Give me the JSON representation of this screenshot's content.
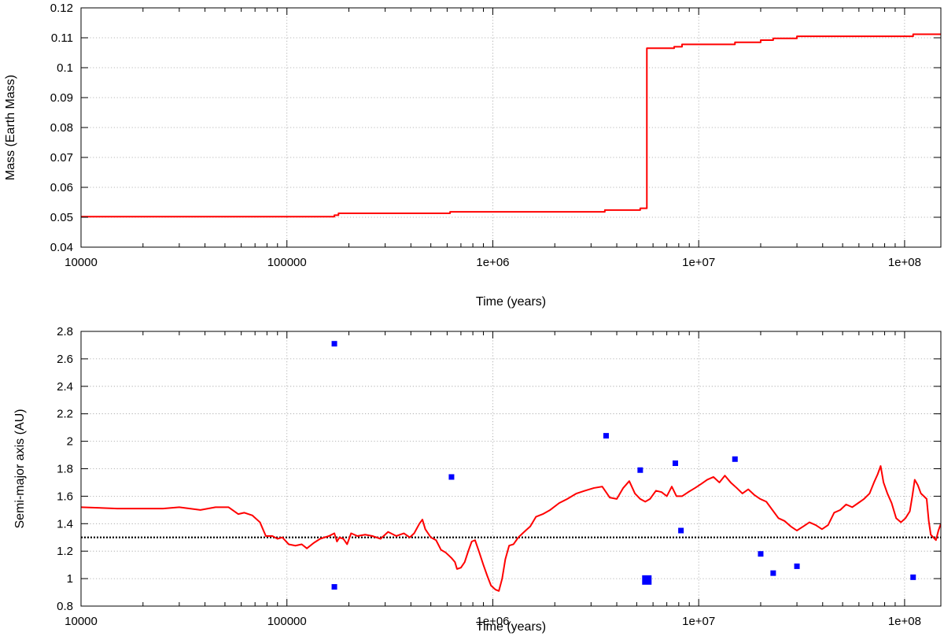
{
  "chart_data": [
    {
      "type": "line",
      "title": "",
      "xlabel": "Time (years)",
      "ylabel": "Mass (Earth Mass)",
      "x_scale": "log",
      "xlim": [
        10000,
        150000000
      ],
      "ylim": [
        0.04,
        0.12
      ],
      "grid": true,
      "x_ticks": [
        10000,
        100000,
        1000000,
        10000000,
        100000000
      ],
      "x_tick_labels": [
        "10000",
        "100000",
        "1e+06",
        "1e+07",
        "1e+08"
      ],
      "y_ticks": [
        0.04,
        0.05,
        0.06,
        0.07,
        0.08,
        0.09,
        0.1,
        0.11,
        0.12
      ],
      "y_tick_labels": [
        "0.04",
        "0.05",
        "0.06",
        "0.07",
        "0.08",
        "0.09",
        "0.1",
        "0.11",
        "0.12"
      ],
      "line_color": "#ff0000",
      "series": [
        {
          "style": "step",
          "points": [
            [
              10000,
              0.0502
            ],
            [
              170000,
              0.0502
            ],
            [
              170000,
              0.0507
            ],
            [
              178000,
              0.0507
            ],
            [
              178000,
              0.0513
            ],
            [
              620000,
              0.0513
            ],
            [
              620000,
              0.0518
            ],
            [
              3500000,
              0.0518
            ],
            [
              3500000,
              0.0524
            ],
            [
              5200000,
              0.0524
            ],
            [
              5200000,
              0.053
            ],
            [
              5600000,
              0.053
            ],
            [
              5600000,
              0.1065
            ],
            [
              7600000,
              0.1065
            ],
            [
              7600000,
              0.107
            ],
            [
              8300000,
              0.107
            ],
            [
              8300000,
              0.1078
            ],
            [
              15000000,
              0.1078
            ],
            [
              15000000,
              0.1085
            ],
            [
              20000000,
              0.1085
            ],
            [
              20000000,
              0.1092
            ],
            [
              23000000,
              0.1092
            ],
            [
              23000000,
              0.1098
            ],
            [
              30000000,
              0.1098
            ],
            [
              30000000,
              0.1105
            ],
            [
              110000000,
              0.1105
            ],
            [
              110000000,
              0.1112
            ],
            [
              150000000,
              0.1112
            ]
          ]
        }
      ]
    },
    {
      "type": "line",
      "title": "",
      "xlabel": "Time (years)",
      "ylabel": "Semi-major axis (AU)",
      "x_scale": "log",
      "xlim": [
        10000,
        150000000
      ],
      "ylim": [
        0.8,
        2.8
      ],
      "grid": true,
      "x_ticks": [
        10000,
        100000,
        1000000,
        10000000,
        100000000
      ],
      "x_tick_labels": [
        "10000",
        "100000",
        "1e+06",
        "1e+07",
        "1e+08"
      ],
      "y_ticks": [
        0.8,
        1.0,
        1.2,
        1.4,
        1.6,
        1.8,
        2.0,
        2.2,
        2.4,
        2.6,
        2.8
      ],
      "y_tick_labels": [
        "0.8",
        "1",
        "1.2",
        "1.4",
        "1.6",
        "1.8",
        "2",
        "2.2",
        "2.4",
        "2.6",
        "2.8"
      ],
      "line_color": "#ff0000",
      "reference_line": {
        "y": 1.3,
        "style": "dotted",
        "color": "#000000"
      },
      "series": [
        {
          "points": [
            [
              10000,
              1.52
            ],
            [
              15000,
              1.51
            ],
            [
              20000,
              1.51
            ],
            [
              25000,
              1.51
            ],
            [
              30000,
              1.52
            ],
            [
              38000,
              1.5
            ],
            [
              45000,
              1.52
            ],
            [
              52000,
              1.52
            ],
            [
              58000,
              1.47
            ],
            [
              62000,
              1.48
            ],
            [
              68000,
              1.46
            ],
            [
              74000,
              1.41
            ],
            [
              79000,
              1.31
            ],
            [
              85000,
              1.31
            ],
            [
              90000,
              1.29
            ],
            [
              95000,
              1.3
            ],
            [
              102000,
              1.25
            ],
            [
              110000,
              1.24
            ],
            [
              118000,
              1.25
            ],
            [
              125000,
              1.22
            ],
            [
              135000,
              1.26
            ],
            [
              145000,
              1.29
            ],
            [
              160000,
              1.31
            ],
            [
              170000,
              1.33
            ],
            [
              175000,
              1.27
            ],
            [
              180000,
              1.3
            ],
            [
              188000,
              1.29
            ],
            [
              196000,
              1.25
            ],
            [
              205000,
              1.33
            ],
            [
              220000,
              1.31
            ],
            [
              240000,
              1.32
            ],
            [
              260000,
              1.31
            ],
            [
              285000,
              1.29
            ],
            [
              310000,
              1.34
            ],
            [
              340000,
              1.31
            ],
            [
              370000,
              1.33
            ],
            [
              395000,
              1.3
            ],
            [
              415000,
              1.33
            ],
            [
              440000,
              1.4
            ],
            [
              455000,
              1.43
            ],
            [
              470000,
              1.36
            ],
            [
              500000,
              1.3
            ],
            [
              530000,
              1.28
            ],
            [
              560000,
              1.21
            ],
            [
              590000,
              1.19
            ],
            [
              610000,
              1.17
            ],
            [
              630000,
              1.15
            ],
            [
              655000,
              1.12
            ],
            [
              670000,
              1.07
            ],
            [
              700000,
              1.08
            ],
            [
              730000,
              1.12
            ],
            [
              760000,
              1.2
            ],
            [
              790000,
              1.27
            ],
            [
              820000,
              1.28
            ],
            [
              860000,
              1.19
            ],
            [
              900000,
              1.1
            ],
            [
              940000,
              1.02
            ],
            [
              980000,
              0.95
            ],
            [
              1030000,
              0.92
            ],
            [
              1070000,
              0.91
            ],
            [
              1110000,
              1.0
            ],
            [
              1150000,
              1.14
            ],
            [
              1200000,
              1.24
            ],
            [
              1260000,
              1.25
            ],
            [
              1330000,
              1.3
            ],
            [
              1420000,
              1.34
            ],
            [
              1520000,
              1.38
            ],
            [
              1620000,
              1.45
            ],
            [
              1750000,
              1.47
            ],
            [
              1900000,
              1.5
            ],
            [
              2100000,
              1.55
            ],
            [
              2300000,
              1.58
            ],
            [
              2550000,
              1.62
            ],
            [
              2800000,
              1.64
            ],
            [
              3100000,
              1.66
            ],
            [
              3400000,
              1.67
            ],
            [
              3700000,
              1.59
            ],
            [
              4000000,
              1.58
            ],
            [
              4300000,
              1.66
            ],
            [
              4600000,
              1.71
            ],
            [
              4900000,
              1.62
            ],
            [
              5200000,
              1.58
            ],
            [
              5500000,
              1.56
            ],
            [
              5800000,
              1.58
            ],
            [
              6200000,
              1.64
            ],
            [
              6600000,
              1.63
            ],
            [
              7000000,
              1.6
            ],
            [
              7400000,
              1.67
            ],
            [
              7800000,
              1.6
            ],
            [
              8300000,
              1.6
            ],
            [
              8900000,
              1.63
            ],
            [
              9600000,
              1.66
            ],
            [
              10300000,
              1.69
            ],
            [
              11000000,
              1.72
            ],
            [
              11800000,
              1.74
            ],
            [
              12600000,
              1.7
            ],
            [
              13400000,
              1.75
            ],
            [
              14300000,
              1.7
            ],
            [
              15300000,
              1.66
            ],
            [
              16300000,
              1.62
            ],
            [
              17400000,
              1.65
            ],
            [
              18600000,
              1.61
            ],
            [
              19900000,
              1.58
            ],
            [
              21300000,
              1.56
            ],
            [
              22800000,
              1.5
            ],
            [
              24400000,
              1.44
            ],
            [
              26100000,
              1.42
            ],
            [
              28000000,
              1.38
            ],
            [
              30000000,
              1.35
            ],
            [
              32200000,
              1.38
            ],
            [
              34500000,
              1.41
            ],
            [
              37000000,
              1.39
            ],
            [
              39700000,
              1.36
            ],
            [
              42500000,
              1.39
            ],
            [
              45500000,
              1.48
            ],
            [
              48700000,
              1.5
            ],
            [
              52000000,
              1.54
            ],
            [
              55700000,
              1.52
            ],
            [
              59500000,
              1.55
            ],
            [
              63500000,
              1.58
            ],
            [
              67600000,
              1.62
            ],
            [
              71000000,
              1.7
            ],
            [
              74000000,
              1.76
            ],
            [
              76500000,
              1.82
            ],
            [
              79000000,
              1.7
            ],
            [
              82500000,
              1.62
            ],
            [
              86500000,
              1.55
            ],
            [
              91000000,
              1.44
            ],
            [
              96000000,
              1.41
            ],
            [
              101000000,
              1.44
            ],
            [
              106000000,
              1.49
            ],
            [
              109000000,
              1.6
            ],
            [
              112000000,
              1.72
            ],
            [
              116000000,
              1.68
            ],
            [
              120000000,
              1.62
            ],
            [
              124000000,
              1.6
            ],
            [
              128000000,
              1.58
            ],
            [
              131000000,
              1.42
            ],
            [
              134000000,
              1.32
            ],
            [
              138000000,
              1.3
            ],
            [
              142000000,
              1.28
            ],
            [
              146000000,
              1.35
            ],
            [
              150000000,
              1.4
            ]
          ]
        }
      ],
      "markers": {
        "color": "#0000ff",
        "points": [
          {
            "x": 170000,
            "y": 2.71,
            "size": "small"
          },
          {
            "x": 170000,
            "y": 0.94,
            "size": "small"
          },
          {
            "x": 630000,
            "y": 1.74,
            "size": "small"
          },
          {
            "x": 3550000,
            "y": 2.04,
            "size": "small"
          },
          {
            "x": 5200000,
            "y": 1.79,
            "size": "small"
          },
          {
            "x": 5600000,
            "y": 0.99,
            "size": "large"
          },
          {
            "x": 7700000,
            "y": 1.84,
            "size": "small"
          },
          {
            "x": 8200000,
            "y": 1.35,
            "size": "small"
          },
          {
            "x": 15000000,
            "y": 1.87,
            "size": "small"
          },
          {
            "x": 20000000,
            "y": 1.18,
            "size": "small"
          },
          {
            "x": 23000000,
            "y": 1.04,
            "size": "small"
          },
          {
            "x": 30000000,
            "y": 1.09,
            "size": "small"
          },
          {
            "x": 110000000,
            "y": 1.01,
            "size": "small"
          }
        ]
      }
    }
  ]
}
